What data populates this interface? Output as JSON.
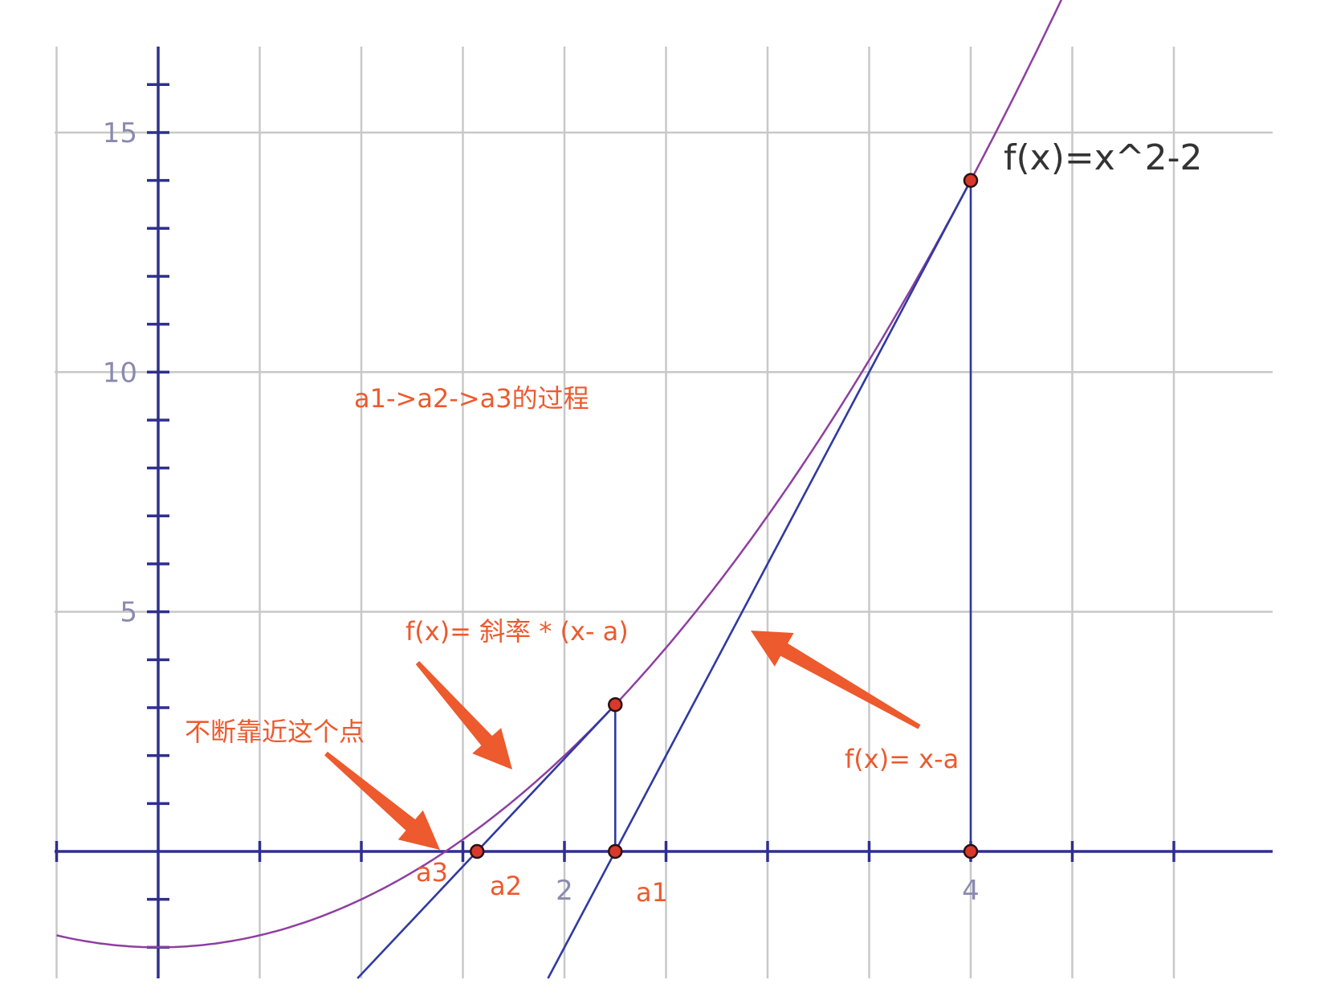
{
  "chart_data": {
    "type": "line",
    "function_label": "f(x)=x^2-2",
    "x_ticks_labeled": [
      "2",
      "4"
    ],
    "y_ticks_labeled": [
      "5",
      "10",
      "15"
    ],
    "grid": true,
    "curve": {
      "expression": "x^2-2"
    },
    "tangent_lines": [
      {
        "through_x": 4,
        "through_y": 14,
        "slope": 8
      },
      {
        "through_x": 2.25,
        "through_y": 3.0625,
        "slope": 4.5
      }
    ],
    "points": [
      {
        "label": "a1",
        "x": 2.25,
        "y": 0
      },
      {
        "label": "a2",
        "x": 1.57,
        "y": 0
      },
      {
        "label": "a3",
        "x": 1.41,
        "y": 0
      }
    ],
    "curve_points": [
      {
        "x": 4,
        "y": 14
      },
      {
        "x": 2.25,
        "y": 3.0625
      }
    ],
    "axis_points": [
      {
        "x": 4,
        "y": 0
      }
    ]
  },
  "annotations": {
    "process": "a1->a2->a3的过程",
    "tangent_formula": "f(x)= 斜率 * (x- a)",
    "approach": "不断靠近这个点",
    "line_formula": "f(x)= x-a"
  },
  "colors": {
    "annotation": "#ec5a2e",
    "curve": "#8e3fa1",
    "axis": "#2f2f8f"
  }
}
